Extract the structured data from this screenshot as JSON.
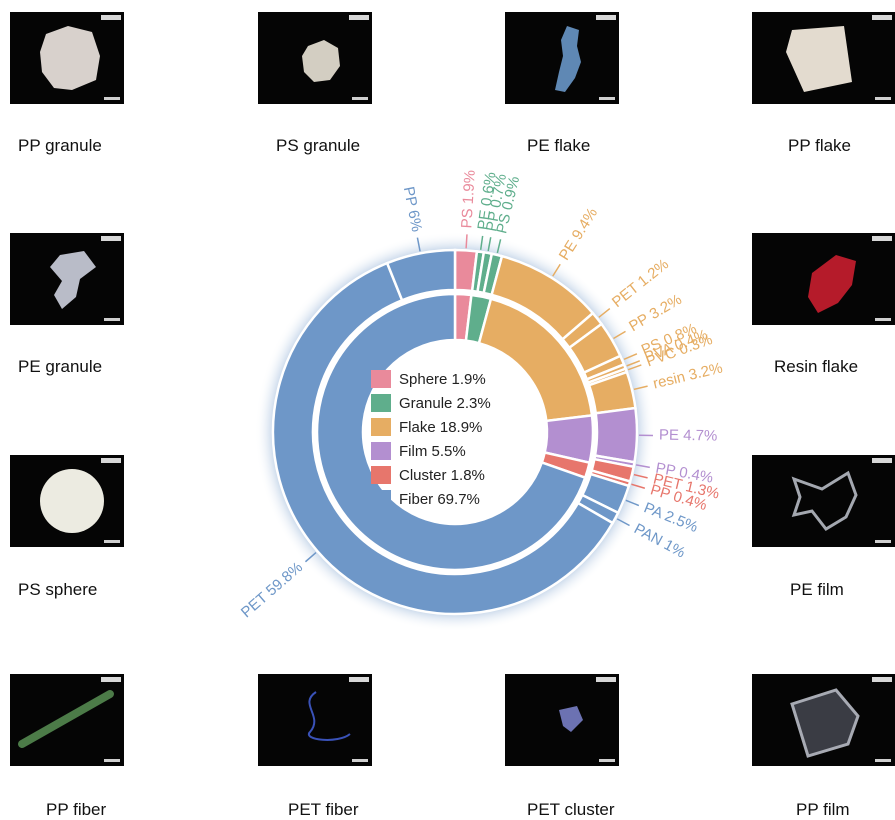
{
  "chart_data": {
    "type": "pie",
    "inner": [
      {
        "label": "Sphere",
        "value": 1.9,
        "color": "#e98a9b"
      },
      {
        "label": "Granule",
        "value": 2.3,
        "color": "#5fae8c"
      },
      {
        "label": "Flake",
        "value": 18.9,
        "color": "#e6ad63"
      },
      {
        "label": "Film",
        "value": 5.5,
        "color": "#b38fd0"
      },
      {
        "label": "Cluster",
        "value": 1.8,
        "color": "#e7766c"
      },
      {
        "label": "Fiber",
        "value": 69.7,
        "color": "#6e97c8"
      }
    ],
    "legend": [
      "Sphere 1.9%",
      "Granule 2.3%",
      "Flake 18.9%",
      "Film 5.5%",
      "Cluster 1.8%",
      "Fiber 69.7%"
    ],
    "outer": [
      {
        "label": "PS 1.9%",
        "polymer": "PS",
        "value": 1.9,
        "group": "Sphere"
      },
      {
        "label": "PE 0.6%",
        "polymer": "PE",
        "value": 0.6,
        "group": "Granule"
      },
      {
        "label": "PP 0.7%",
        "polymer": "PP",
        "value": 0.7,
        "group": "Granule"
      },
      {
        "label": "PS 0.9%",
        "polymer": "PS",
        "value": 0.9,
        "group": "Granule"
      },
      {
        "label": "PE 9.4%",
        "polymer": "PE",
        "value": 9.4,
        "group": "Flake"
      },
      {
        "label": "PET 1.2%",
        "polymer": "PET",
        "value": 1.2,
        "group": "Flake"
      },
      {
        "label": "PP 3.2%",
        "polymer": "PP",
        "value": 3.2,
        "group": "Flake"
      },
      {
        "label": "PS 0.8%",
        "polymer": "PS",
        "value": 0.8,
        "group": "Flake"
      },
      {
        "label": "PVA 0.4%",
        "polymer": "PVA",
        "value": 0.4,
        "group": "Flake"
      },
      {
        "label": "PVC 0.3%",
        "polymer": "PVC",
        "value": 0.3,
        "group": "Flake"
      },
      {
        "label": "resin 3.2%",
        "polymer": "resin",
        "value": 3.2,
        "group": "Flake"
      },
      {
        "label": "PE 4.7%",
        "polymer": "PE",
        "value": 4.7,
        "group": "Film"
      },
      {
        "label": "PP 0.4%",
        "polymer": "PP",
        "value": 0.4,
        "group": "Film"
      },
      {
        "label": "PET 1.3%",
        "polymer": "PET",
        "value": 1.3,
        "group": "Cluster"
      },
      {
        "label": "PP 0.4%",
        "polymer": "PP",
        "value": 0.4,
        "group": "Cluster"
      },
      {
        "label": "PA 2.5%",
        "polymer": "PA",
        "value": 2.5,
        "group": "Fiber"
      },
      {
        "label": "PAN 1%",
        "polymer": "PAN",
        "value": 1,
        "group": "Fiber"
      },
      {
        "label": "PET 59.8%",
        "polymer": "PET",
        "value": 59.8,
        "group": "Fiber"
      },
      {
        "label": "PP 6%",
        "polymer": "PP",
        "value": 6,
        "group": "Fiber"
      }
    ]
  },
  "images": [
    {
      "caption": "PP granule",
      "sample": "pp-granule",
      "color": "#d8d1cc"
    },
    {
      "caption": "PS granule",
      "sample": "ps-granule",
      "color": "#d3cec2"
    },
    {
      "caption": "PE flake",
      "sample": "pe-flake",
      "color": "#5f88b4"
    },
    {
      "caption": "PP flake",
      "sample": "pp-flake",
      "color": "#e3dbcf"
    },
    {
      "caption": "PE granule",
      "sample": "pe-granule",
      "color": "#b9bcc8"
    },
    {
      "caption": "Resin flake",
      "sample": "resin-flake",
      "color": "#b51b2a"
    },
    {
      "caption": "PS sphere",
      "sample": "ps-sphere",
      "color": "#ecebe1"
    },
    {
      "caption": "PE film",
      "sample": "pe-film",
      "color": "#a4a8b0"
    },
    {
      "caption": "PP fiber",
      "sample": "pp-fiber",
      "color": "#4c7b48"
    },
    {
      "caption": "PET fiber",
      "sample": "pet-fiber",
      "color": "#3a52b8"
    },
    {
      "caption": "PET cluster",
      "sample": "pet-cluster",
      "color": "#6c72b2"
    },
    {
      "caption": "PP film",
      "sample": "pp-film",
      "color": "#a7aab3"
    }
  ]
}
